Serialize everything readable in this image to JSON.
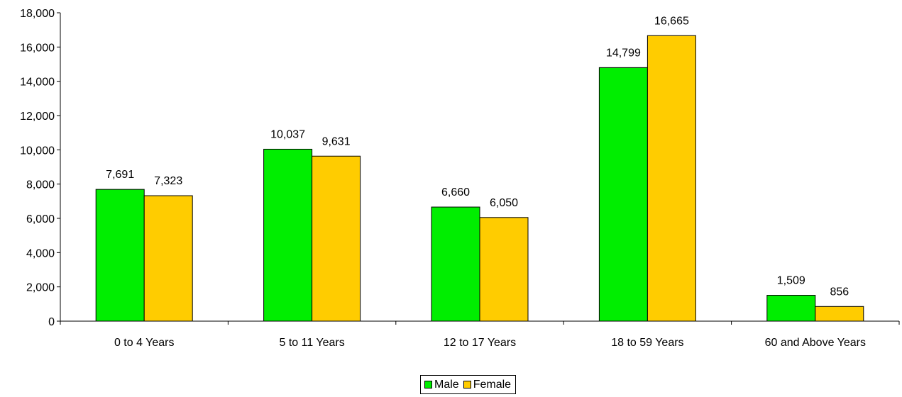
{
  "chart_data": {
    "type": "bar",
    "title": "",
    "xlabel": "",
    "ylabel": "",
    "categories": [
      "0 to 4  Years",
      "5 to 11 Years",
      "12 to 17 Years",
      "18 to 59 Years",
      "60 and Above Years"
    ],
    "series": [
      {
        "name": "Male",
        "color": "#00ee00",
        "values": [
          7691,
          10037,
          6660,
          14799,
          1509
        ],
        "labels": [
          "7,691",
          "10,037",
          "6,660",
          "14,799",
          "1,509"
        ]
      },
      {
        "name": "Female",
        "color": "#ffcc00",
        "values": [
          7323,
          9631,
          6050,
          16665,
          856
        ],
        "labels": [
          "7,323",
          "9,631",
          "6,050",
          "16,665",
          "856"
        ]
      }
    ],
    "ylim": [
      0,
      18000
    ],
    "yticks": [
      0,
      2000,
      4000,
      6000,
      8000,
      10000,
      12000,
      14000,
      16000,
      18000
    ],
    "ytick_labels": [
      "0",
      "2,000",
      "4,000",
      "6,000",
      "8,000",
      "10,000",
      "12,000",
      "14,000",
      "16,000",
      "18,000"
    ],
    "grid": false,
    "legend_position": "bottom"
  }
}
